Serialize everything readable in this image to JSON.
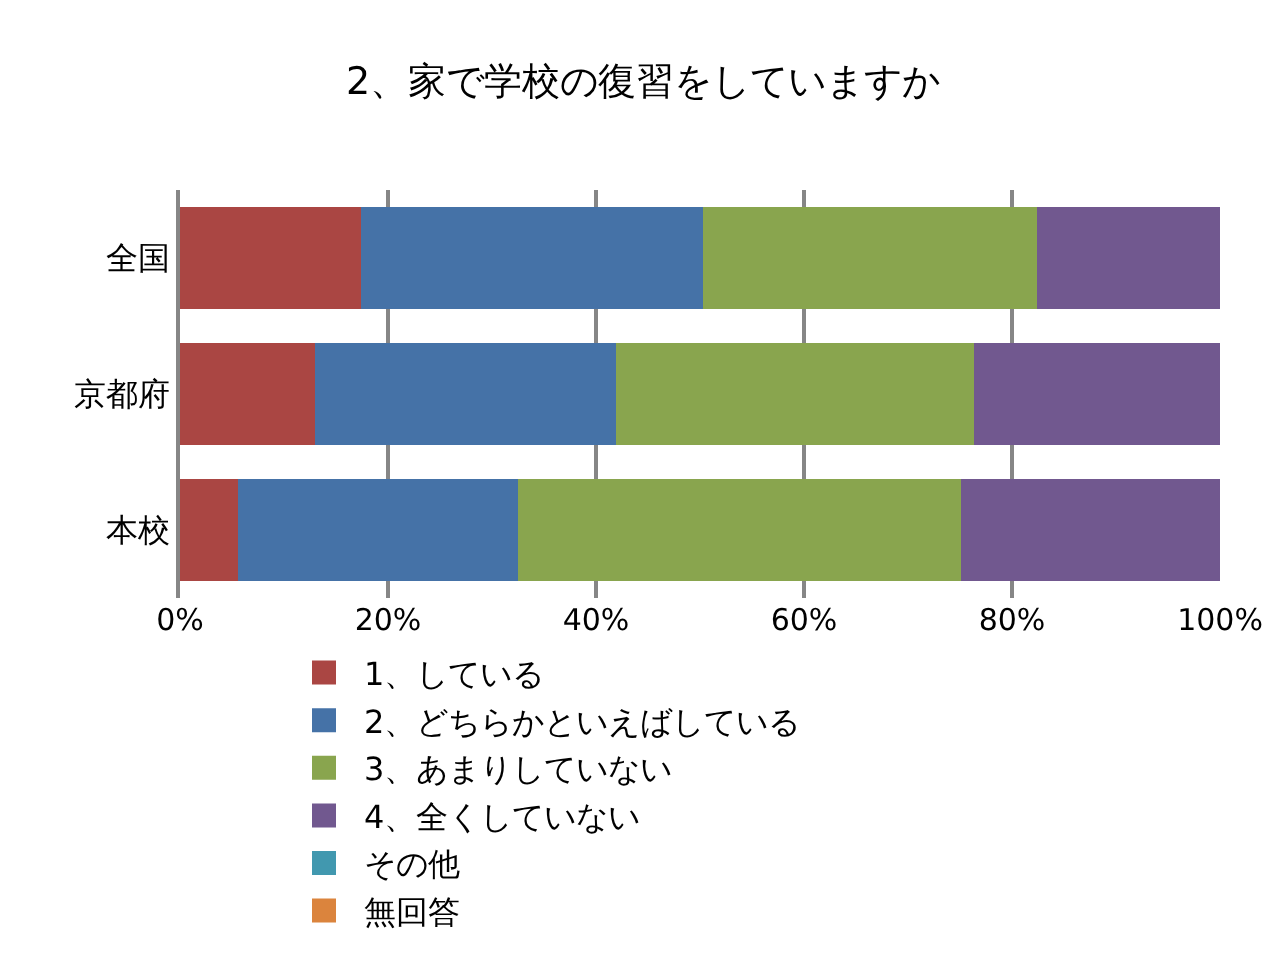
{
  "chart_data": {
    "type": "bar",
    "orientation": "horizontal",
    "stacked": true,
    "title": "2、家で学校の復習をしていますか",
    "categories": [
      "全国",
      "京都府",
      "本校"
    ],
    "series": [
      {
        "name": "1、している",
        "color": "#aa4643",
        "values": [
          17.4,
          13.0,
          5.6
        ]
      },
      {
        "name": "2、どちらかといえばしている",
        "color": "#4572a7",
        "values": [
          32.9,
          28.9,
          26.9
        ]
      },
      {
        "name": "3、あまりしていない",
        "color": "#89a54e",
        "values": [
          32.1,
          34.4,
          42.6
        ]
      },
      {
        "name": "4、全くしていない",
        "color": "#71588f",
        "values": [
          17.6,
          23.7,
          24.9
        ]
      },
      {
        "name": "その他",
        "color": "#4198af",
        "values": [
          0,
          0,
          0
        ]
      },
      {
        "name": "無回答",
        "color": "#db843d",
        "values": [
          0,
          0,
          0
        ]
      }
    ],
    "xlim": [
      0,
      100
    ],
    "xticks": [
      {
        "value": 0,
        "label": "0%"
      },
      {
        "value": 20,
        "label": "20%"
      },
      {
        "value": 40,
        "label": "40%"
      },
      {
        "value": 60,
        "label": "60%"
      },
      {
        "value": 80,
        "label": "80%"
      },
      {
        "value": 100,
        "label": "100%"
      }
    ],
    "grid": "x",
    "legend": "bottom"
  }
}
